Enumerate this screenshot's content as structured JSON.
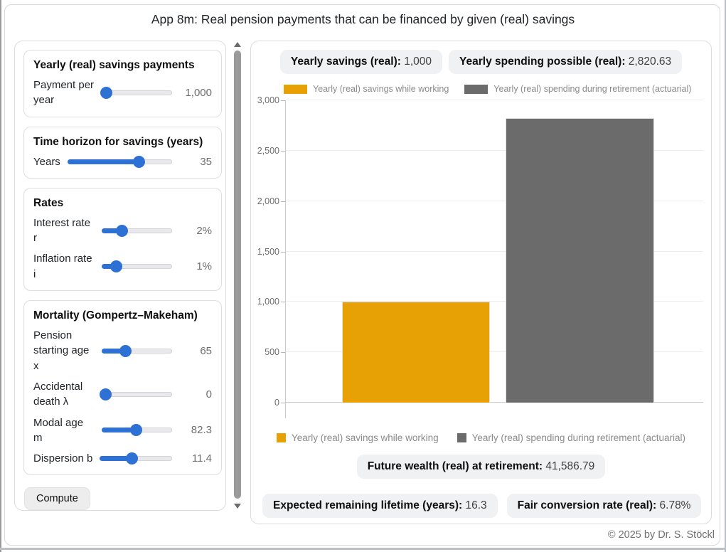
{
  "title": "App 8m: Real pension payments that can be financed by given (real) savings",
  "sidebar": {
    "sections": [
      {
        "heading": "Yearly (real) savings payments",
        "sliders": [
          {
            "label": "Payment per year",
            "value": "1,000",
            "percent": 6
          }
        ]
      },
      {
        "heading": "Time horizon for savings (years)",
        "sliders": [
          {
            "label": "Years",
            "value": "35",
            "percent": 68
          }
        ]
      },
      {
        "heading": "Rates",
        "sliders": [
          {
            "label": "Interest rate r",
            "value": "2%",
            "percent": 28
          },
          {
            "label": "Inflation rate i",
            "value": "1%",
            "percent": 20
          }
        ]
      },
      {
        "heading": "Mortality (Gompertz–Makeham)",
        "sliders": [
          {
            "label": "Pension starting age x",
            "value": "65",
            "percent": 33
          },
          {
            "label": "Accidental death λ",
            "value": "0",
            "percent": 5
          },
          {
            "label": "Modal age m",
            "value": "82.3",
            "percent": 48
          },
          {
            "label": "Dispersion b",
            "value": "11.4",
            "percent": 44
          }
        ]
      }
    ],
    "compute_label": "Compute"
  },
  "main": {
    "badges_top": [
      {
        "label": "Yearly savings (real):",
        "value": "1,000"
      },
      {
        "label": "Yearly spending possible (real):",
        "value": "2,820.63"
      }
    ],
    "badge_wealth": {
      "label": "Future wealth (real) at retirement:",
      "value": "41,586.79"
    },
    "badges_bottom": [
      {
        "label": "Expected remaining lifetime (years):",
        "value": "16.3"
      },
      {
        "label": "Fair conversion rate (real):",
        "value": "6.78%"
      }
    ]
  },
  "chart_data": {
    "type": "bar",
    "series": [
      {
        "name": "Yearly (real) savings while working",
        "value": 1000,
        "color": "#E8A104"
      },
      {
        "name": "Yearly (real) spending during retirement (actuarial)",
        "value": 2820.63,
        "color": "#6B6B6B"
      }
    ],
    "ylim": [
      0,
      3000
    ],
    "yticks": [
      {
        "v": 0,
        "label": "0"
      },
      {
        "v": 500,
        "label": "500"
      },
      {
        "v": 1000,
        "label": "1,000"
      },
      {
        "v": 1500,
        "label": "1,500"
      },
      {
        "v": 2000,
        "label": "2,000"
      },
      {
        "v": 2500,
        "label": "2,500"
      },
      {
        "v": 3000,
        "label": "3,000"
      }
    ],
    "grid": true,
    "legend_position": "top-and-bottom"
  },
  "footer": {
    "copyright": "© 2025 by Dr. S. Stöckl"
  }
}
